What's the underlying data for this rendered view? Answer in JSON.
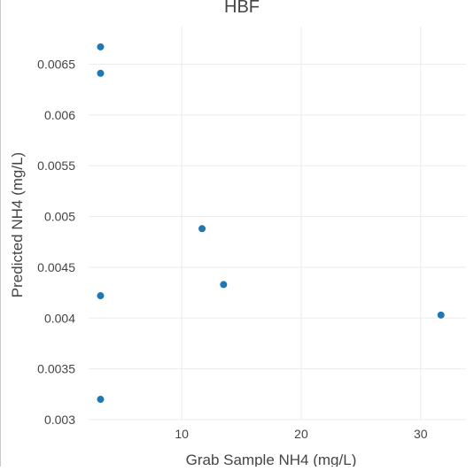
{
  "chart_data": {
    "type": "scatter",
    "title": "HBF",
    "xlabel": "Grab Sample NH4 (mg/L)",
    "ylabel": "Predicted NH4 (mg/L)",
    "xlim": [
      2.2,
      33.8
    ],
    "ylim": [
      0.003,
      0.00687
    ],
    "x_ticks": [
      10,
      20,
      30
    ],
    "x_tick_labels": [
      "10",
      "20",
      "30"
    ],
    "y_ticks": [
      0.003,
      0.0035,
      0.004,
      0.0045,
      0.005,
      0.0055,
      0.006,
      0.0065
    ],
    "y_tick_labels": [
      "0.003",
      "0.0035",
      "0.004",
      "0.0045",
      "0.005",
      "0.0055",
      "0.006",
      "0.0065"
    ],
    "grid": true,
    "marker_color": "#1f77b4",
    "series": [
      {
        "points": [
          {
            "x": 3.2,
            "y": 0.00667
          },
          {
            "x": 3.2,
            "y": 0.00641
          },
          {
            "x": 3.2,
            "y": 0.00422
          },
          {
            "x": 3.2,
            "y": 0.0032
          },
          {
            "x": 11.7,
            "y": 0.00488
          },
          {
            "x": 13.5,
            "y": 0.00433
          },
          {
            "x": 31.7,
            "y": 0.00403
          }
        ]
      }
    ]
  }
}
